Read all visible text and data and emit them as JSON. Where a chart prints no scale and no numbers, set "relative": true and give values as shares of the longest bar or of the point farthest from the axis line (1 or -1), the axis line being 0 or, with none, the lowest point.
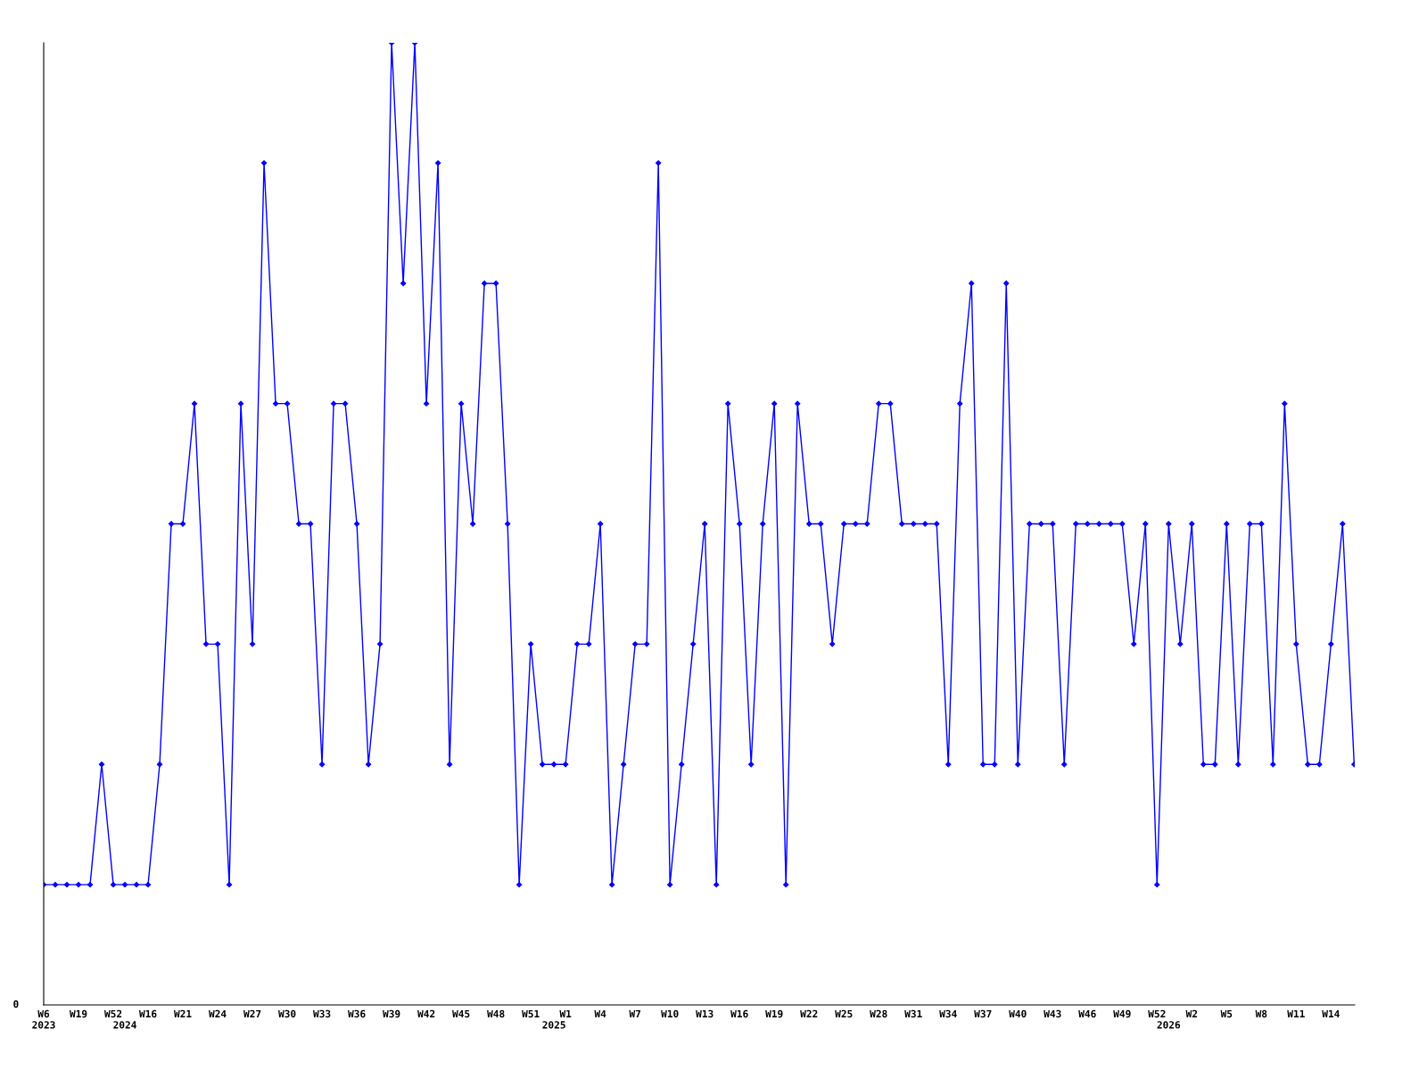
{
  "chart_data": {
    "type": "line",
    "relative": true,
    "marker": "diamond",
    "line_style": "solid",
    "grid": false,
    "legend": false,
    "annotations": [
      "0"
    ],
    "categories": [
      "W6\n2023",
      null,
      null,
      "W19",
      null,
      null,
      "W52",
      "\n2024",
      null,
      "W16",
      null,
      null,
      "W21",
      null,
      null,
      "W24",
      null,
      null,
      "W27",
      null,
      null,
      "W30",
      null,
      null,
      "W33",
      null,
      null,
      "W36",
      null,
      null,
      "W39",
      null,
      null,
      "W42",
      null,
      null,
      "W45",
      null,
      null,
      "W48",
      null,
      null,
      "W51",
      null,
      "\n2025",
      "W1",
      null,
      null,
      "W4",
      null,
      null,
      "W7",
      null,
      null,
      "W10",
      null,
      null,
      "W13",
      null,
      null,
      "W16",
      null,
      null,
      "W19",
      null,
      null,
      "W22",
      null,
      null,
      "W25",
      null,
      null,
      "W28",
      null,
      null,
      "W31",
      null,
      null,
      "W34",
      null,
      null,
      "W37",
      null,
      null,
      "W40",
      null,
      null,
      "W43",
      null,
      null,
      "W46",
      null,
      null,
      "W49",
      null,
      null,
      "W52",
      "\n2026",
      null,
      "W2",
      null,
      null,
      "W5",
      null,
      null,
      "W8",
      null,
      null,
      "W11",
      null,
      null,
      "W14",
      null,
      null
    ],
    "series": [
      {
        "color": "#0000ff",
        "values": [
          0.125,
          0.125,
          0.125,
          0.125,
          0.125,
          0.25,
          0.125,
          0.125,
          0.125,
          0.125,
          0.25,
          0.5,
          0.5,
          0.625,
          0.375,
          0.375,
          0.125,
          0.625,
          0.375,
          0.875,
          0.625,
          0.625,
          0.5,
          0.5,
          0.25,
          0.625,
          0.625,
          0.5,
          0.25,
          0.375,
          1,
          0.75,
          1,
          0.625,
          0.875,
          0.25,
          0.625,
          0.5,
          0.75,
          0.75,
          0.5,
          0.125,
          0.375,
          0.25,
          0.25,
          0.25,
          0.375,
          0.375,
          0.5,
          0.125,
          0.25,
          0.375,
          0.375,
          0.875,
          0.125,
          0.25,
          0.375,
          0.5,
          0.125,
          0.625,
          0.5,
          0.25,
          0.5,
          0.625,
          0.125,
          0.625,
          0.5,
          0.5,
          0.375,
          0.5,
          0.5,
          0.5,
          0.625,
          0.625,
          0.5,
          0.5,
          0.5,
          0.5,
          0.25,
          0.625,
          0.75,
          0.25,
          0.25,
          0.75,
          0.25,
          0.5,
          0.5,
          0.5,
          0.25,
          0.5,
          0.5,
          0.5,
          0.5,
          0.5,
          0.375,
          0.5,
          0.125,
          0.5,
          0.375,
          0.5,
          0.25,
          0.25,
          0.5,
          0.25,
          0.5,
          0.5,
          0.25,
          0.625,
          0.375,
          0.25,
          0.25,
          0.375,
          0.5,
          0.25
        ]
      }
    ]
  }
}
